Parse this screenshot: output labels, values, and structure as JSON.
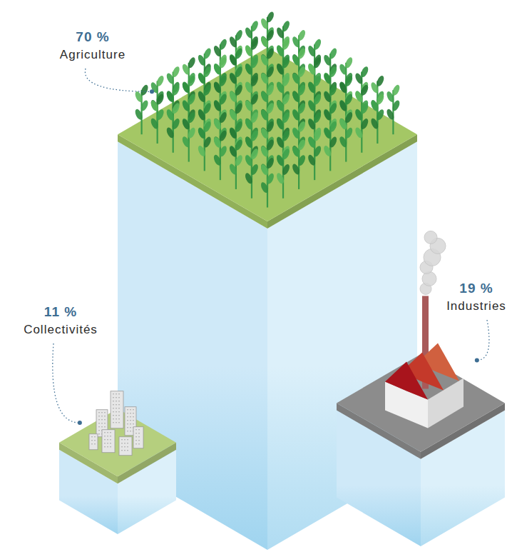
{
  "chart_data": {
    "type": "bar",
    "categories": [
      "Collectivités",
      "Agriculture",
      "Industries"
    ],
    "values": [
      11,
      70,
      19
    ],
    "value_labels": [
      "11 %",
      "70 %",
      "19 %"
    ],
    "data_labels": true,
    "tick_labels": false,
    "colors": [
      "#b5cf7e",
      "#a4c765",
      "#8c8c8c"
    ]
  }
}
